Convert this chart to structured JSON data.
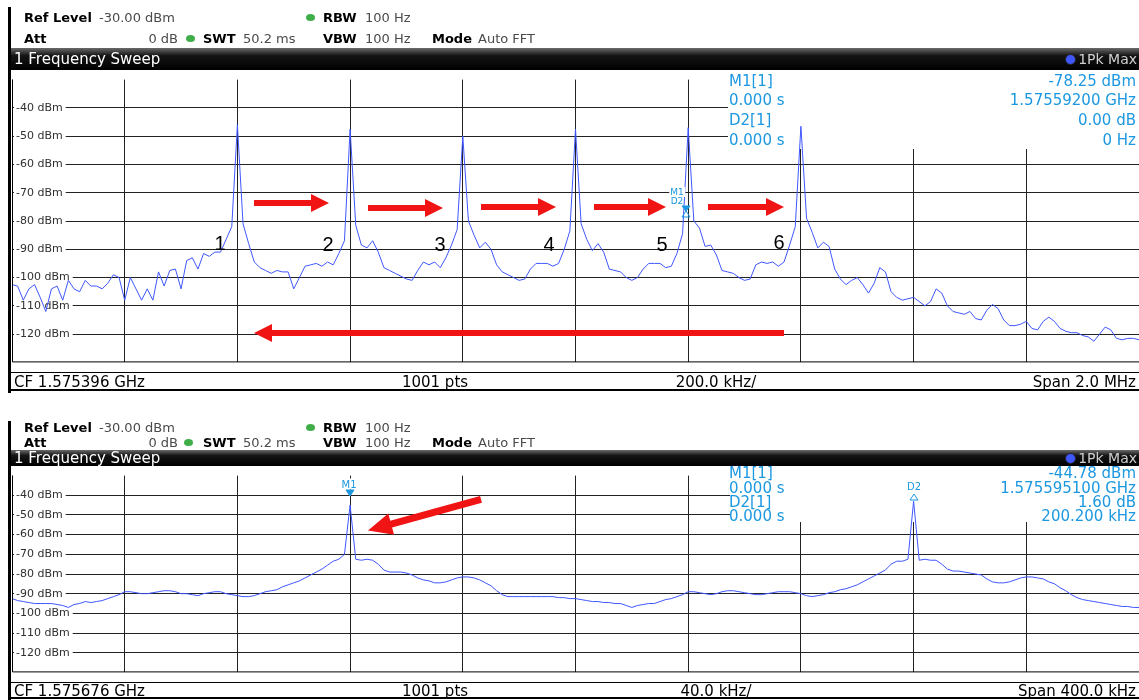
{
  "chart_data": [
    {
      "type": "line",
      "title": "1 Frequency Sweep",
      "legend": "top right",
      "grid": true,
      "categories": [
        null,
        null,
        null,
        null,
        null,
        null,
        null,
        null,
        null,
        null,
        null,
        null,
        null,
        null,
        null,
        null,
        null,
        null,
        null,
        null,
        null,
        null,
        null,
        null,
        null,
        null,
        null,
        null,
        null,
        null,
        null,
        null,
        null,
        null,
        null,
        null,
        null,
        null,
        null,
        null,
        null,
        null,
        null,
        null,
        null,
        null,
        null,
        null,
        null,
        null,
        null,
        null,
        null,
        null,
        null,
        null,
        null,
        null,
        null,
        null,
        null,
        null,
        null,
        null,
        null,
        null,
        null,
        null,
        null,
        null,
        null,
        null,
        null,
        null,
        null,
        null,
        null,
        null,
        null,
        null,
        null,
        null,
        null,
        null,
        null,
        null,
        null,
        null,
        null,
        null,
        null,
        null,
        null,
        null,
        null,
        null,
        null,
        null,
        null,
        null,
        null,
        null,
        null,
        null,
        null,
        null,
        null,
        null,
        null,
        null,
        null,
        null,
        null,
        null,
        null,
        null,
        null,
        null,
        null,
        null,
        null,
        null,
        null,
        null,
        null,
        null,
        null,
        null,
        null,
        null,
        null,
        null,
        null,
        null,
        null,
        null,
        null,
        null,
        null,
        null,
        null,
        null,
        null,
        null,
        null,
        null,
        null,
        null,
        null,
        null,
        null,
        null,
        null,
        null,
        null,
        null,
        null,
        null,
        null,
        null,
        null,
        null,
        null,
        null,
        null,
        null,
        null,
        null,
        null,
        null,
        null,
        null,
        null,
        null,
        null,
        null,
        null,
        null,
        null,
        null,
        null,
        null,
        null,
        null,
        null,
        null,
        null,
        null,
        null,
        null,
        null,
        null,
        null,
        null,
        null,
        null,
        null,
        null,
        null,
        null,
        null
      ],
      "series": [
        {
          "name": "1Pk Max",
          "color": "#3f57ff",
          "values": [
            -102.5,
            -103,
            -108,
            -104,
            -102.5,
            -107,
            -112,
            -104,
            -103,
            -108,
            -101,
            -104,
            -105,
            -101,
            -103,
            -103,
            -104,
            -102,
            -99,
            -100,
            -108,
            -100,
            -104,
            -108,
            -104,
            -108,
            -98,
            -103,
            -97.5,
            -97,
            -104,
            -94,
            -93,
            -97,
            -91.5,
            -92.5,
            -91,
            -91,
            -86.5,
            -82,
            -46,
            -81,
            -88,
            -94.5,
            -96.5,
            -97.5,
            -98.5,
            -97.5,
            -98,
            -98,
            -104,
            -100,
            -96,
            -95.5,
            -95,
            -96,
            -94.5,
            -95.5,
            -91.5,
            -87,
            -47.5,
            -81.5,
            -88.5,
            -89.5,
            -87,
            -91,
            -96.5,
            -97.5,
            -98.5,
            -99.5,
            -100.5,
            -101,
            -97.5,
            -94.5,
            -95.5,
            -94.5,
            -96.5,
            -93,
            -88.5,
            -83,
            -50,
            -80,
            -85,
            -89.5,
            -87.5,
            -90,
            -95.5,
            -98,
            -99,
            -100,
            -101,
            -100.5,
            -97,
            -95,
            -95,
            -95,
            -96,
            -95,
            -90,
            -83.5,
            -47.5,
            -81,
            -86.5,
            -90.5,
            -88,
            -91,
            -97,
            -97.5,
            -98,
            -100,
            -101,
            -100,
            -97,
            -95,
            -95,
            -95,
            -96.5,
            -96,
            -91.5,
            -84.5,
            -47,
            -80,
            -82.5,
            -89,
            -88.5,
            -92,
            -97.5,
            -98,
            -98.5,
            -100,
            -101,
            -100.5,
            -95.5,
            -94.5,
            -95,
            -94.5,
            -96,
            -94.5,
            -88.5,
            -82,
            -46.5,
            -79,
            -84,
            -89.5,
            -87.5,
            -89,
            -97,
            -100.5,
            -102.5,
            -101,
            -100,
            -102.5,
            -105.5,
            -102,
            -96.5,
            -98,
            -105,
            -107,
            -108,
            -107.5,
            -107,
            -108.5,
            -110,
            -108.5,
            -104,
            -105.5,
            -110,
            -112,
            -112.5,
            -113,
            -112,
            -114.5,
            -115,
            -111.5,
            -109.5,
            -111,
            -115,
            -117,
            -117,
            -116.5,
            -115.5,
            -118,
            -118.5,
            -115.5,
            -114,
            -115.5,
            -118,
            -119,
            -119.5,
            -119.5,
            -120.5,
            -121,
            -122.5,
            -120,
            -117.5,
            -118.5,
            -121.5,
            -122,
            -121.5,
            -121.5,
            -122
          ]
        }
      ],
      "ylim": [
        -130,
        -30
      ],
      "yticks": [
        {
          "value": -40,
          "label": "-40 dBm"
        },
        {
          "value": -50,
          "label": "-50 dBm"
        },
        {
          "value": -60,
          "label": "-60 dBm"
        },
        {
          "value": -70,
          "label": "-70 dBm"
        },
        {
          "value": -80,
          "label": "-80 dBm"
        },
        {
          "value": -90,
          "label": "-90 dBm"
        },
        {
          "value": -100,
          "label": "-100 dBm"
        },
        {
          "value": -110,
          "label": "-110 dBm"
        },
        {
          "value": -120,
          "label": "-120 dBm"
        }
      ],
      "annotations": [
        "Ref Level",
        "-30.00 dBm",
        "Att",
        "0 dB",
        "SWT",
        "50.2 ms",
        "RBW",
        "100 Hz",
        "VBW",
        "100 Hz",
        "Mode",
        "Auto FFT",
        "M1[1]",
        "-78.25 dBm",
        "0.000 s",
        "1.57559200 GHz",
        "D2[1]",
        "0.00 dB",
        "0.000 s",
        "0 Hz",
        "CF 1.575396 GHz",
        "1001 pts",
        "200.0 kHz/",
        "Span 2.0 MHz",
        "M1",
        "D2",
        "1",
        "2",
        "3",
        "4",
        "5",
        "6"
      ]
    },
    {
      "type": "line",
      "title": "1 Frequency Sweep",
      "legend": "top right",
      "grid": true,
      "categories": [
        null,
        null,
        null,
        null,
        null,
        null,
        null,
        null,
        null,
        null,
        null,
        null,
        null,
        null,
        null,
        null,
        null,
        null,
        null,
        null,
        null,
        null,
        null,
        null,
        null,
        null,
        null,
        null,
        null,
        null,
        null,
        null,
        null,
        null,
        null,
        null,
        null,
        null,
        null,
        null,
        null,
        null,
        null,
        null,
        null,
        null,
        null,
        null,
        null,
        null,
        null,
        null,
        null,
        null,
        null,
        null,
        null,
        null,
        null,
        null,
        null,
        null,
        null,
        null,
        null,
        null,
        null,
        null,
        null,
        null,
        null,
        null,
        null,
        null,
        null,
        null,
        null,
        null,
        null,
        null,
        null,
        null,
        null,
        null,
        null,
        null,
        null,
        null,
        null,
        null,
        null,
        null,
        null,
        null,
        null,
        null,
        null,
        null,
        null,
        null,
        null,
        null,
        null,
        null,
        null,
        null,
        null,
        null,
        null,
        null,
        null,
        null,
        null,
        null,
        null,
        null,
        null,
        null,
        null,
        null,
        null,
        null,
        null,
        null,
        null,
        null,
        null,
        null,
        null,
        null,
        null,
        null,
        null,
        null,
        null,
        null,
        null,
        null,
        null,
        null,
        null,
        null,
        null,
        null,
        null,
        null,
        null,
        null,
        null,
        null,
        null,
        null,
        null,
        null,
        null,
        null,
        null,
        null,
        null,
        null,
        null,
        null,
        null,
        null,
        null,
        null,
        null,
        null,
        null,
        null,
        null,
        null,
        null,
        null,
        null,
        null,
        null,
        null,
        null,
        null,
        null,
        null,
        null,
        null,
        null,
        null,
        null,
        null,
        null,
        null,
        null,
        null,
        null,
        null,
        null,
        null,
        null,
        null,
        null,
        null,
        null
      ],
      "series": [
        {
          "name": "1Pk Max",
          "color": "#3f57ff",
          "values": [
            -92.5,
            -93.5,
            -94,
            -94.5,
            -95,
            -95,
            -95,
            -95,
            -95.5,
            -96,
            -97,
            -95.5,
            -95,
            -94,
            -94.5,
            -94,
            -93.5,
            -92.5,
            -91.5,
            -90.5,
            -89,
            -89,
            -89.5,
            -90,
            -90,
            -89.5,
            -89,
            -88.5,
            -88.5,
            -89,
            -90,
            -90,
            -90.5,
            -91,
            -90,
            -89.5,
            -89,
            -89,
            -90,
            -90.5,
            -91,
            -91.5,
            -91.5,
            -91,
            -90,
            -89,
            -88.5,
            -88,
            -86.5,
            -85.5,
            -84.5,
            -83.5,
            -82,
            -80.5,
            -79,
            -77.5,
            -75.5,
            -73.5,
            -72.5,
            -70,
            -45,
            -72.5,
            -73,
            -72.5,
            -73,
            -75,
            -78,
            -79,
            -79,
            -79,
            -79.5,
            -80.5,
            -82,
            -83,
            -83.5,
            -84.5,
            -84.5,
            -84,
            -83,
            -82,
            -81.5,
            -81.5,
            -82,
            -83,
            -84.5,
            -86,
            -88.5,
            -90.5,
            -91.5,
            -91.5,
            -91.5,
            -91.5,
            -91.5,
            -91.5,
            -91.5,
            -91.5,
            -91.5,
            -92,
            -92,
            -92.5,
            -92.5,
            -93,
            -93.5,
            -94,
            -94,
            -94.5,
            -94.5,
            -95,
            -95,
            -96,
            -97,
            -96,
            -95.5,
            -95,
            -95,
            -94,
            -93,
            -92.5,
            -91.5,
            -90.5,
            -89,
            -89,
            -89.5,
            -90,
            -90.5,
            -90,
            -89,
            -88.5,
            -88.5,
            -89,
            -89.5,
            -90,
            -90.5,
            -90.5,
            -90,
            -89.5,
            -89,
            -89,
            -89,
            -89.5,
            -90,
            -91,
            -91.5,
            -91,
            -90.5,
            -89.5,
            -89,
            -88,
            -87.5,
            -86.5,
            -85.5,
            -84,
            -82.5,
            -81,
            -79.5,
            -78,
            -75,
            -73.5,
            -73.5,
            -72.5,
            -43,
            -73,
            -72.5,
            -73,
            -73,
            -75,
            -77.5,
            -78.5,
            -78.5,
            -79,
            -79.5,
            -80,
            -80.5,
            -82.5,
            -84,
            -84.5,
            -84.5,
            -84,
            -83,
            -82,
            -81.5,
            -81.5,
            -82,
            -82.5,
            -84,
            -85,
            -87,
            -88.5,
            -90.5,
            -92,
            -93,
            -93.5,
            -94,
            -94.5,
            -95,
            -95.5,
            -96,
            -96.5,
            -96.5,
            -97,
            -97
          ]
        }
      ],
      "ylim": [
        -130,
        -30
      ],
      "yticks": [
        {
          "value": -40,
          "label": "-40 dBm"
        },
        {
          "value": -50,
          "label": "-50 dBm"
        },
        {
          "value": -60,
          "label": "-60 dBm"
        },
        {
          "value": -70,
          "label": "-70 dBm"
        },
        {
          "value": -80,
          "label": "-80 dBm"
        },
        {
          "value": -90,
          "label": "-90 dBm"
        },
        {
          "value": -100,
          "label": "-100 dBm"
        },
        {
          "value": -110,
          "label": "-110 dBm"
        },
        {
          "value": -120,
          "label": "-120 dBm"
        }
      ],
      "annotations": [
        "Ref Level",
        "-30.00 dBm",
        "Att",
        "0 dB",
        "SWT",
        "50.2 ms",
        "RBW",
        "100 Hz",
        "VBW",
        "100 Hz",
        "Mode",
        "Auto FFT",
        "M1[1]",
        "-44.78 dBm",
        "0.000 s",
        "1.575595100 GHz",
        "D2[1]",
        "1.60 dB",
        "0.000 s",
        "200.200 kHz",
        "CF 1.575676 GHz",
        "1001 pts",
        "40.0 kHz/",
        "Span 400.0 kHz",
        "M1",
        "D2"
      ]
    }
  ]
}
